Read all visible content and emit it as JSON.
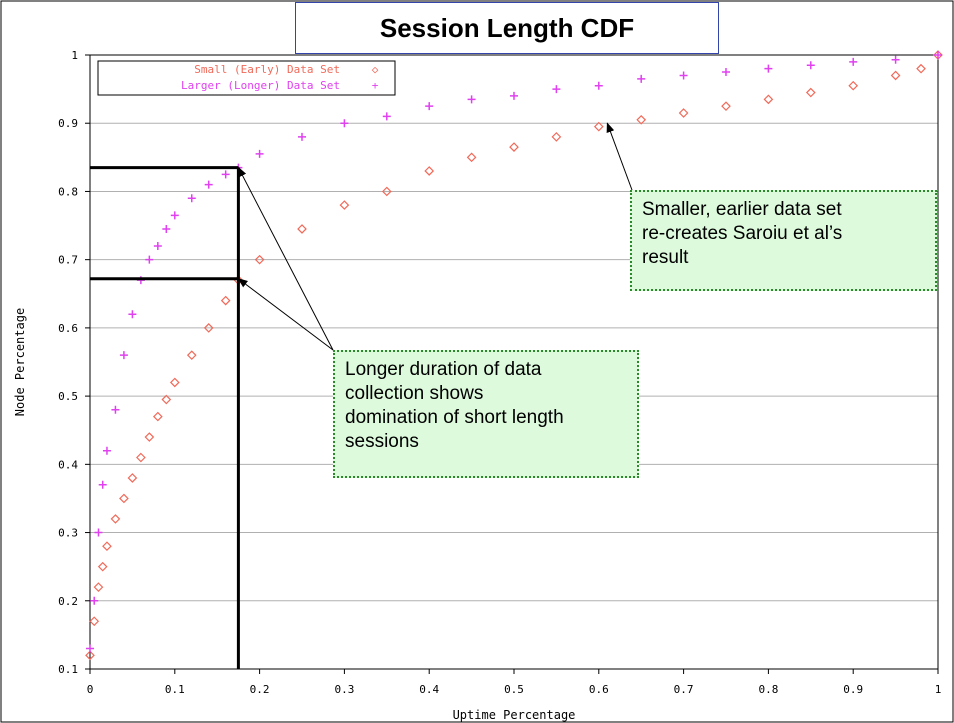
{
  "title": "Session Length CDF",
  "chart_data": {
    "type": "scatter",
    "xlabel": "Uptime Percentage",
    "ylabel": "Node Percentage",
    "xlim": [
      0,
      1
    ],
    "ylim": [
      0.1,
      1
    ],
    "x_ticks": [
      "0",
      "0.1",
      "0.2",
      "0.3",
      "0.4",
      "0.5",
      "0.6",
      "0.7",
      "0.8",
      "0.9",
      "1"
    ],
    "y_ticks": [
      "0.1",
      "0.2",
      "0.3",
      "0.4",
      "0.5",
      "0.6",
      "0.7",
      "0.8",
      "0.9",
      "1"
    ],
    "grid": "horizontal",
    "legend_position": "top-left",
    "series": [
      {
        "name": "Small (Early) Data Set",
        "marker": "◇",
        "color": "#f06a5a",
        "points": [
          [
            0.0,
            0.12
          ],
          [
            0.005,
            0.17
          ],
          [
            0.01,
            0.22
          ],
          [
            0.015,
            0.25
          ],
          [
            0.02,
            0.28
          ],
          [
            0.03,
            0.32
          ],
          [
            0.04,
            0.35
          ],
          [
            0.05,
            0.38
          ],
          [
            0.06,
            0.41
          ],
          [
            0.07,
            0.44
          ],
          [
            0.08,
            0.47
          ],
          [
            0.09,
            0.495
          ],
          [
            0.1,
            0.52
          ],
          [
            0.12,
            0.56
          ],
          [
            0.14,
            0.6
          ],
          [
            0.16,
            0.64
          ],
          [
            0.175,
            0.67
          ],
          [
            0.2,
            0.7
          ],
          [
            0.25,
            0.745
          ],
          [
            0.3,
            0.78
          ],
          [
            0.35,
            0.8
          ],
          [
            0.4,
            0.83
          ],
          [
            0.45,
            0.85
          ],
          [
            0.5,
            0.865
          ],
          [
            0.55,
            0.88
          ],
          [
            0.6,
            0.895
          ],
          [
            0.65,
            0.905
          ],
          [
            0.7,
            0.915
          ],
          [
            0.75,
            0.925
          ],
          [
            0.8,
            0.935
          ],
          [
            0.85,
            0.945
          ],
          [
            0.9,
            0.955
          ],
          [
            0.95,
            0.97
          ],
          [
            0.98,
            0.98
          ],
          [
            1.0,
            1.0
          ]
        ]
      },
      {
        "name": "Larger (Longer) Data Set",
        "marker": "+",
        "color": "#e040f0",
        "points": [
          [
            0.0,
            0.13
          ],
          [
            0.005,
            0.2
          ],
          [
            0.01,
            0.3
          ],
          [
            0.015,
            0.37
          ],
          [
            0.02,
            0.42
          ],
          [
            0.03,
            0.48
          ],
          [
            0.04,
            0.56
          ],
          [
            0.05,
            0.62
          ],
          [
            0.06,
            0.67
          ],
          [
            0.07,
            0.7
          ],
          [
            0.08,
            0.72
          ],
          [
            0.09,
            0.745
          ],
          [
            0.1,
            0.765
          ],
          [
            0.12,
            0.79
          ],
          [
            0.14,
            0.81
          ],
          [
            0.16,
            0.825
          ],
          [
            0.175,
            0.835
          ],
          [
            0.2,
            0.855
          ],
          [
            0.25,
            0.88
          ],
          [
            0.3,
            0.9
          ],
          [
            0.35,
            0.91
          ],
          [
            0.4,
            0.925
          ],
          [
            0.45,
            0.935
          ],
          [
            0.5,
            0.94
          ],
          [
            0.55,
            0.95
          ],
          [
            0.6,
            0.955
          ],
          [
            0.65,
            0.965
          ],
          [
            0.7,
            0.97
          ],
          [
            0.75,
            0.975
          ],
          [
            0.8,
            0.98
          ],
          [
            0.85,
            0.985
          ],
          [
            0.9,
            0.99
          ],
          [
            0.95,
            0.993
          ],
          [
            1.0,
            1.0
          ]
        ]
      }
    ],
    "reference_lines": [
      {
        "x": 0.175,
        "y": 0.835
      },
      {
        "x": 0.175,
        "y": 0.672
      }
    ]
  },
  "annotations": [
    {
      "text": "Longer duration of data\ncollection shows\ndomination of short length\nsessions"
    },
    {
      "text": "Smaller, earlier data set\nre-creates Saroiu et al’s\nresult"
    }
  ]
}
